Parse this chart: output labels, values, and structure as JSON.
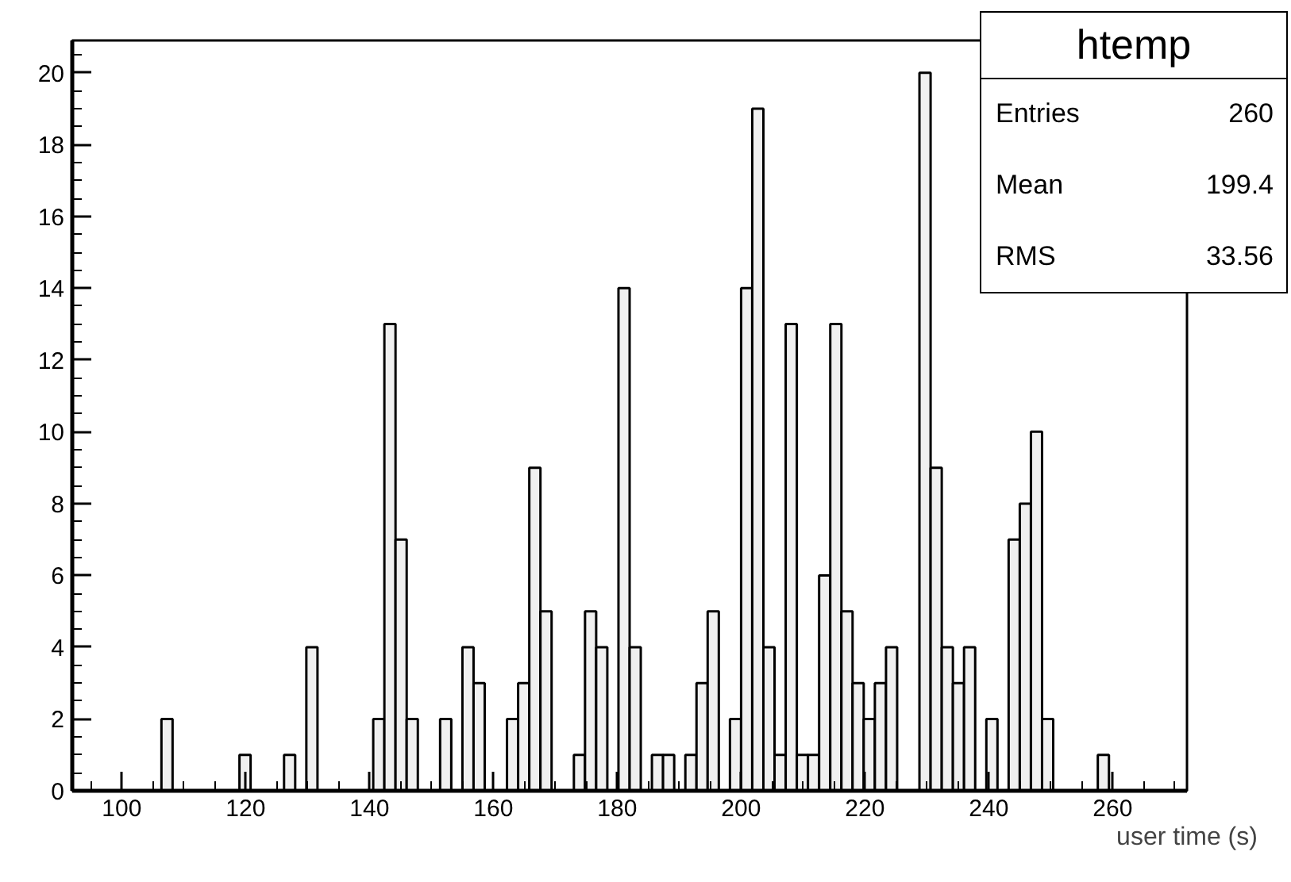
{
  "chart_data": {
    "type": "histogram",
    "title": "htemp",
    "xlabel": "user time (s)",
    "bins": [
      92,
      93.8,
      95.6,
      97.4,
      99.2,
      101,
      102.8,
      104.6,
      106.4,
      108.2,
      110,
      111.8,
      113.6,
      115.4,
      117.2,
      119,
      120.8,
      122.6,
      124.4,
      126.2,
      128,
      129.8,
      131.6,
      133.4,
      135.2,
      137,
      138.8,
      140.6,
      142.4,
      144.2,
      146,
      147.8,
      149.6,
      151.4,
      153.2,
      155,
      156.8,
      158.6,
      160.4,
      162.2,
      164,
      165.8,
      167.6,
      169.4,
      171.2,
      173,
      174.8,
      176.6,
      178.4,
      180.2,
      182,
      183.8,
      185.6,
      187.4,
      189.2,
      191,
      192.8,
      194.6,
      196.4,
      198.2,
      200,
      201.8,
      203.6,
      205.4,
      207.2,
      209,
      210.8,
      212.6,
      214.4,
      216.2,
      218,
      219.8,
      221.6,
      223.4,
      225.2,
      227,
      228.8,
      230.6,
      232.4,
      234.2,
      236,
      237.8,
      239.6,
      241.4,
      243.2,
      245,
      246.8,
      248.6,
      250.4,
      252.2,
      254,
      255.8,
      257.6,
      259.4,
      261.2,
      263,
      264.8,
      266.6,
      268.4,
      270.2,
      272
    ],
    "values": [
      0,
      0,
      0,
      0,
      0,
      0,
      0,
      0,
      2,
      0,
      0,
      0,
      0,
      0,
      0,
      1,
      0,
      0,
      0,
      1,
      0,
      4,
      0,
      0,
      0,
      0,
      0,
      2,
      13,
      7,
      2,
      0,
      0,
      2,
      0,
      4,
      3,
      0,
      0,
      2,
      3,
      9,
      5,
      0,
      0,
      1,
      5,
      4,
      0,
      14,
      4,
      0,
      1,
      1,
      0,
      1,
      3,
      5,
      0,
      2,
      14,
      19,
      4,
      1,
      13,
      1,
      1,
      6,
      13,
      5,
      3,
      2,
      3,
      4,
      0,
      0,
      20,
      9,
      4,
      3,
      4,
      0,
      2,
      0,
      7,
      8,
      10,
      2,
      0,
      0,
      0,
      0,
      1,
      0,
      0,
      0,
      0,
      0,
      0,
      0
    ],
    "color": "#f0f0f0",
    "xlim": [
      92,
      272
    ],
    "ylim": [
      0,
      20.9
    ],
    "xticks": [
      100,
      120,
      140,
      160,
      180,
      200,
      220,
      240,
      260
    ],
    "yticks": [
      0,
      2,
      4,
      6,
      8,
      10,
      12,
      14,
      16,
      18,
      20
    ],
    "grid": false,
    "annotations": [
      "Entries",
      "260",
      "Mean",
      "199.4",
      "RMS",
      "33.56"
    ]
  }
}
